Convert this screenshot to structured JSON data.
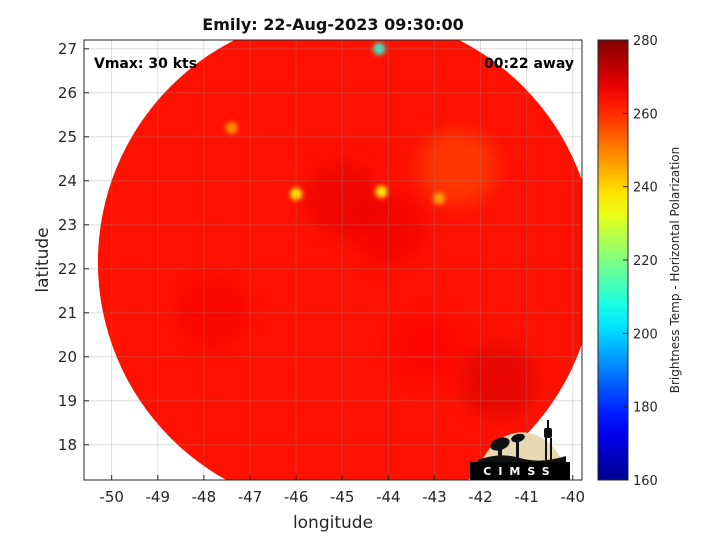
{
  "chart_data": {
    "type": "heatmap",
    "title": "Emily: 22-Aug-2023 09:30:00",
    "xlabel": "longitude",
    "ylabel": "latitude",
    "xlim": [
      -50.6,
      -39.8
    ],
    "ylim": [
      17.2,
      27.2
    ],
    "x_ticks": [
      -50,
      -49,
      -48,
      -47,
      -46,
      -45,
      -44,
      -43,
      -42,
      -41,
      -40
    ],
    "y_ticks": [
      18,
      19,
      20,
      21,
      22,
      23,
      24,
      25,
      26,
      27
    ],
    "grid": true,
    "annotations": {
      "vmax": "Vmax: 30 kts",
      "time_offset": "00:22 away"
    },
    "colorbar": {
      "label": "Brightness Temp - Horizontal Polarization",
      "range": [
        160,
        280
      ],
      "ticks": [
        160,
        180,
        200,
        220,
        240,
        260,
        280
      ],
      "colormap": "jet"
    },
    "swath": {
      "center": [
        -44.9,
        22.15
      ],
      "radius_deg": 5.4,
      "background_value": 263
    },
    "features": [
      {
        "lon": -45.0,
        "lat": 23.6,
        "value": 268
      },
      {
        "lon": -44.0,
        "lat": 22.9,
        "value": 267
      },
      {
        "lon": -42.5,
        "lat": 24.3,
        "value": 255
      },
      {
        "lon": -47.8,
        "lat": 21.0,
        "value": 266
      },
      {
        "lon": -43.2,
        "lat": 20.2,
        "value": 265
      },
      {
        "lon": -46.0,
        "lat": 23.7,
        "value": 236
      },
      {
        "lon": -44.15,
        "lat": 23.75,
        "value": 236
      },
      {
        "lon": -42.9,
        "lat": 23.6,
        "value": 245
      },
      {
        "lon": -47.4,
        "lat": 25.2,
        "value": 247
      },
      {
        "lon": -44.2,
        "lat": 27.0,
        "value": 210
      },
      {
        "lon": -41.6,
        "lat": 19.45,
        "value": 270
      }
    ]
  },
  "logo": {
    "text": "CIMSS"
  }
}
